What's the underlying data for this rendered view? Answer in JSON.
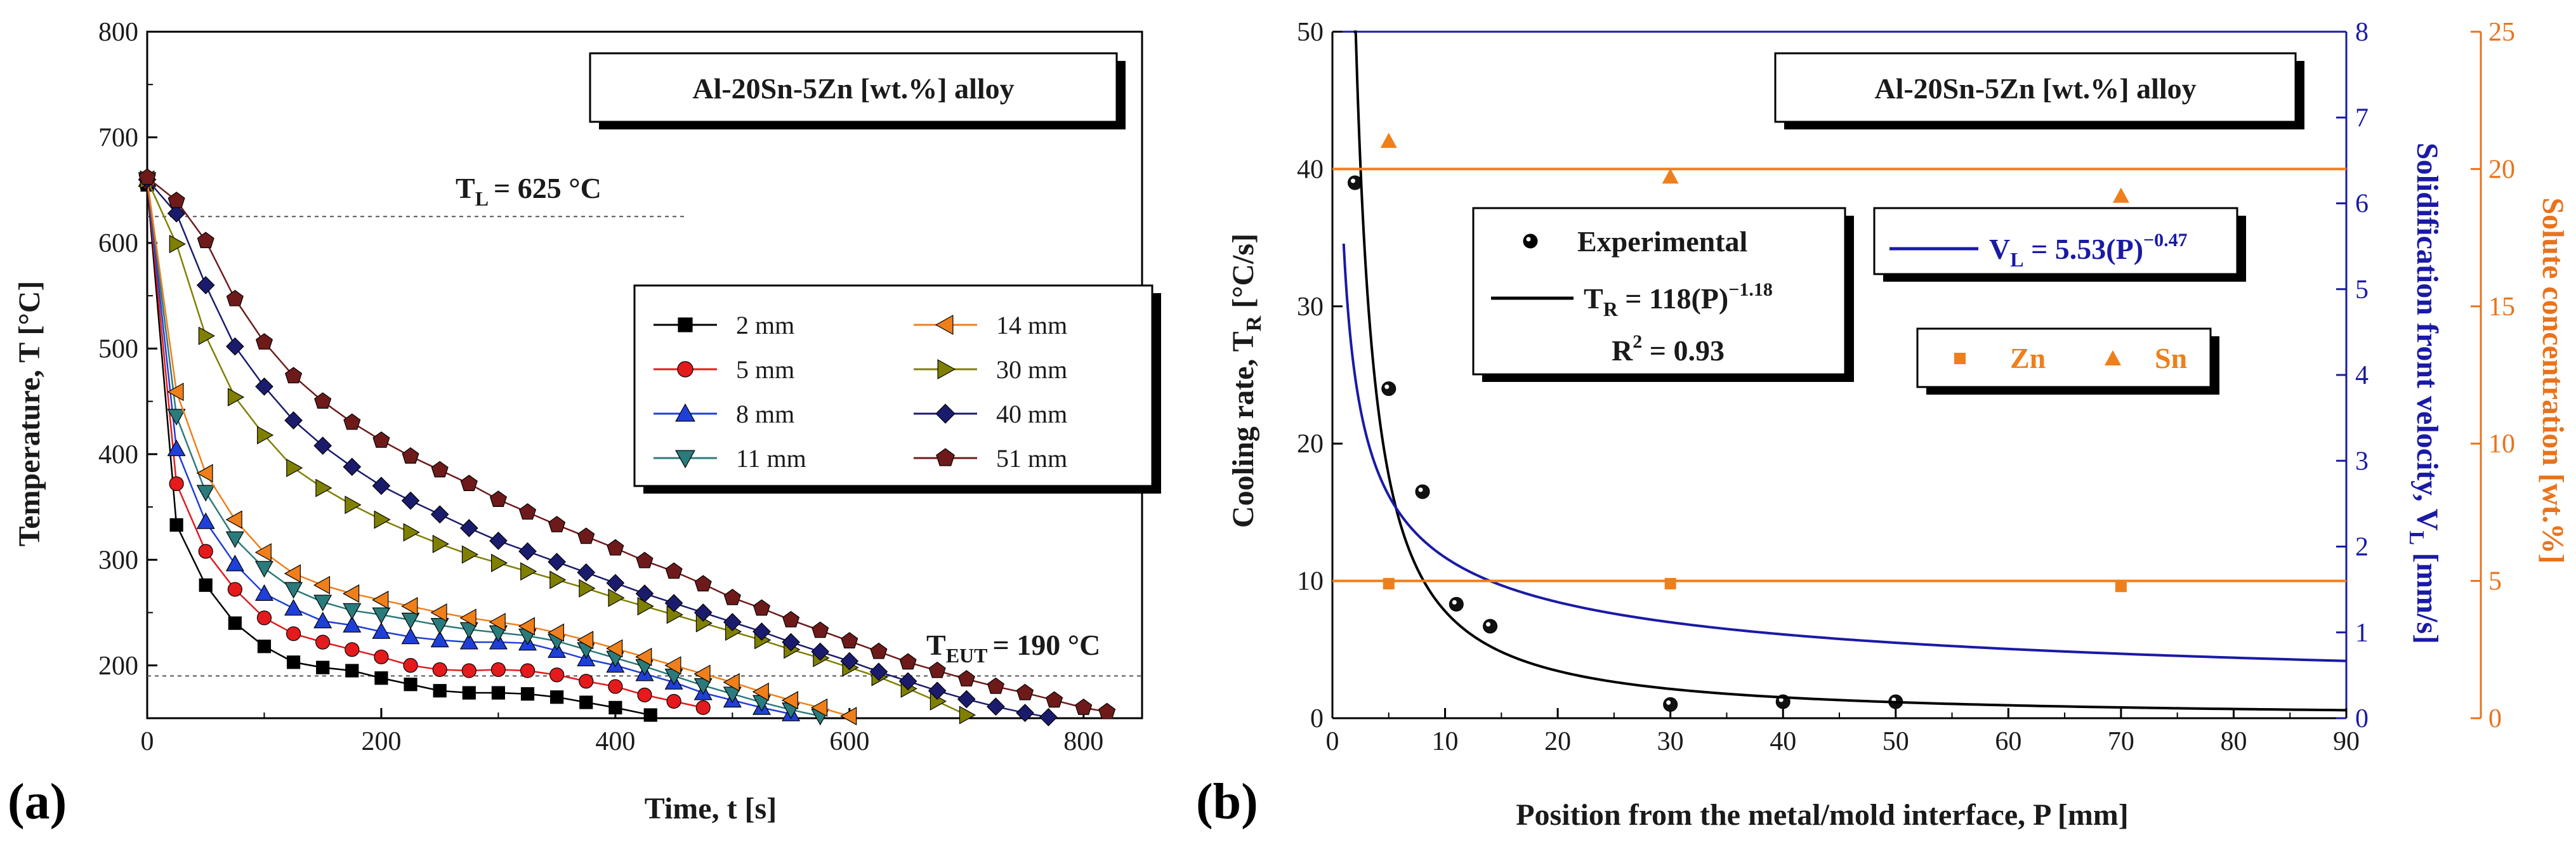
{
  "colors": {
    "black": "#000000",
    "red": "#e41a1c",
    "blue": "#1f3fd9",
    "teal": "#2a7b7b",
    "orange": "#ef7f1a",
    "olive": "#808000",
    "navy": "#1b1b6e",
    "maroon": "#6e1a1a",
    "vel_axis": "#1a1aa6",
    "conc_axis": "#e8731c"
  },
  "chart_data": [
    {
      "type": "line",
      "panel_label": "(a)",
      "title": "Al-20Sn-5Zn [wt.%] alloy",
      "xlabel": "Time, t [s]",
      "ylabel": "Temperature, T [°C]",
      "xlim": [
        0,
        850
      ],
      "ylim": [
        150,
        800
      ],
      "xticks": [
        0,
        200,
        400,
        600,
        800
      ],
      "yticks": [
        200,
        300,
        400,
        500,
        600,
        700,
        800
      ],
      "grid": false,
      "reference_lines": [
        {
          "axis": "y",
          "value": 625,
          "label_main": "T",
          "label_sub": "L",
          "label_rest": "= 625 °C"
        },
        {
          "axis": "y",
          "value": 190,
          "label_main": "T",
          "label_sub": "EUT",
          "label_rest": "= 190 °C"
        }
      ],
      "legend_position": "center-right",
      "series": [
        {
          "name": "2 mm",
          "marker": "square",
          "color": "black",
          "x": [
            0,
            25,
            50,
            75,
            100,
            125,
            150,
            175,
            200,
            225,
            250,
            275,
            300,
            325,
            350,
            375,
            400,
            430
          ],
          "y": [
            655,
            333,
            276,
            240,
            218,
            203,
            198,
            195,
            188,
            182,
            176,
            174,
            174,
            173,
            170,
            165,
            160,
            153
          ]
        },
        {
          "name": "5 mm",
          "marker": "circle",
          "color": "red",
          "x": [
            0,
            25,
            50,
            75,
            100,
            125,
            150,
            175,
            200,
            225,
            250,
            275,
            300,
            325,
            350,
            375,
            400,
            425,
            450,
            475
          ],
          "y": [
            658,
            372,
            308,
            272,
            245,
            230,
            222,
            215,
            208,
            200,
            196,
            195,
            196,
            195,
            191,
            185,
            180,
            172,
            166,
            160
          ]
        },
        {
          "name": "8 mm",
          "marker": "triangle-up",
          "color": "blue",
          "x": [
            0,
            25,
            50,
            75,
            100,
            125,
            150,
            175,
            200,
            225,
            250,
            275,
            300,
            325,
            350,
            375,
            400,
            425,
            450,
            475,
            500,
            525,
            550
          ],
          "y": [
            660,
            405,
            336,
            296,
            268,
            254,
            242,
            238,
            232,
            227,
            224,
            222,
            222,
            221,
            214,
            206,
            200,
            192,
            184,
            174,
            167,
            160,
            154
          ]
        },
        {
          "name": "11 mm",
          "marker": "triangle-down",
          "color": "teal",
          "x": [
            0,
            25,
            50,
            75,
            100,
            125,
            150,
            175,
            200,
            225,
            250,
            275,
            300,
            325,
            350,
            375,
            400,
            425,
            450,
            475,
            500,
            525,
            550,
            575
          ],
          "y": [
            660,
            436,
            364,
            320,
            292,
            272,
            260,
            252,
            248,
            243,
            238,
            234,
            231,
            228,
            223,
            215,
            207,
            199,
            190,
            181,
            173,
            165,
            158,
            152
          ]
        },
        {
          "name": "14 mm",
          "marker": "triangle-left",
          "color": "orange",
          "x": [
            0,
            25,
            50,
            75,
            100,
            125,
            150,
            175,
            200,
            225,
            250,
            275,
            300,
            325,
            350,
            375,
            400,
            425,
            450,
            475,
            500,
            525,
            550,
            575,
            600
          ],
          "y": [
            660,
            459,
            382,
            338,
            307,
            287,
            276,
            268,
            262,
            256,
            250,
            245,
            241,
            237,
            231,
            224,
            216,
            208,
            200,
            192,
            184,
            175,
            167,
            160,
            152
          ]
        },
        {
          "name": "30 mm",
          "marker": "triangle-right",
          "color": "olive",
          "x": [
            0,
            25,
            50,
            75,
            100,
            125,
            150,
            175,
            200,
            225,
            250,
            275,
            300,
            325,
            350,
            375,
            400,
            425,
            450,
            475,
            500,
            525,
            550,
            575,
            600,
            625,
            650,
            675,
            700
          ],
          "y": [
            660,
            599,
            512,
            454,
            418,
            387,
            368,
            352,
            338,
            326,
            315,
            305,
            297,
            289,
            281,
            273,
            264,
            256,
            248,
            240,
            232,
            224,
            215,
            207,
            198,
            189,
            178,
            166,
            153
          ]
        },
        {
          "name": "40 mm",
          "marker": "diamond",
          "color": "navy",
          "x": [
            0,
            25,
            50,
            75,
            100,
            125,
            150,
            175,
            200,
            225,
            250,
            275,
            300,
            325,
            350,
            375,
            400,
            425,
            450,
            475,
            500,
            525,
            550,
            575,
            600,
            625,
            650,
            675,
            700,
            725,
            750,
            770
          ],
          "y": [
            660,
            628,
            560,
            502,
            464,
            432,
            408,
            388,
            370,
            356,
            343,
            330,
            318,
            308,
            298,
            288,
            278,
            268,
            259,
            250,
            241,
            232,
            222,
            213,
            204,
            194,
            185,
            176,
            168,
            161,
            155,
            151
          ]
        },
        {
          "name": "51 mm",
          "marker": "pentagon",
          "color": "maroon",
          "x": [
            0,
            25,
            50,
            75,
            100,
            125,
            150,
            175,
            200,
            225,
            250,
            275,
            300,
            325,
            350,
            375,
            400,
            425,
            450,
            475,
            500,
            525,
            550,
            575,
            600,
            625,
            650,
            675,
            700,
            725,
            750,
            775,
            800,
            820
          ],
          "y": [
            662,
            640,
            602,
            547,
            506,
            474,
            450,
            430,
            413,
            398,
            385,
            372,
            357,
            345,
            333,
            322,
            311,
            299,
            289,
            277,
            264,
            254,
            243,
            233,
            223,
            213,
            203,
            195,
            187,
            180,
            174,
            167,
            160,
            156
          ]
        }
      ]
    },
    {
      "type": "scatter",
      "panel_label": "(b)",
      "title": "Al-20Sn-5Zn [wt.%] alloy",
      "xlabel": "Position from the metal/mold interface, P [mm]",
      "xlim": [
        0,
        90
      ],
      "xticks": [
        0,
        10,
        20,
        30,
        40,
        50,
        60,
        70,
        80,
        90
      ],
      "y_axes": [
        {
          "side": "left",
          "label_main": "Cooling rate, T",
          "label_sub": "R",
          "label_rest": " [°C/s]",
          "range": [
            0,
            50
          ],
          "ticks": [
            0,
            10,
            20,
            30,
            40,
            50
          ],
          "color": "black"
        },
        {
          "side": "right",
          "label_main": "Solidification front velocity, V",
          "label_sub": "L",
          "label_rest": " [mm/s]",
          "range": [
            0,
            8
          ],
          "ticks": [
            0,
            1,
            2,
            3,
            4,
            5,
            6,
            7,
            8
          ],
          "color": "vel_axis"
        },
        {
          "side": "right-outer",
          "label": "Solute concentration [wt.%]",
          "range": [
            0,
            25
          ],
          "ticks": [
            0,
            5,
            10,
            15,
            20,
            25
          ],
          "color": "conc_axis"
        }
      ],
      "grid": false,
      "series": [
        {
          "name": "Experimental",
          "marker": "circle",
          "axis": "left",
          "color": "black",
          "x": [
            2,
            5,
            8,
            11,
            14,
            30,
            40,
            50
          ],
          "y": [
            39,
            24,
            16.5,
            8.3,
            6.7,
            1.0,
            1.2,
            1.2
          ]
        },
        {
          "name": "T_R fit",
          "type": "line",
          "axis": "left",
          "color": "black",
          "formula": {
            "a": 118,
            "b": -1.18
          },
          "x_start": 1.9,
          "x_end": 90
        },
        {
          "name": "V_L fit",
          "type": "line",
          "axis": "right",
          "color": "vel_axis",
          "formula": {
            "a": 5.53,
            "b": -0.47
          },
          "x_start": 1.0,
          "x_end": 90
        },
        {
          "name": "Zn",
          "marker": "square",
          "axis": "right-outer",
          "color": "orange",
          "x": [
            5,
            30,
            70
          ],
          "y": [
            4.9,
            4.9,
            4.8
          ],
          "mean_line": 5.0
        },
        {
          "name": "Sn",
          "marker": "triangle-up",
          "axis": "right-outer",
          "color": "orange",
          "x": [
            5,
            30,
            70
          ],
          "y": [
            21.0,
            19.7,
            19.0
          ],
          "mean_line": 20.0
        }
      ],
      "annotations": {
        "experimental_label": "Experimental",
        "fit_tr_main": "T",
        "fit_tr_sub": "R",
        "fit_tr_rest": " = 118(P)",
        "fit_tr_exp": "−1.18",
        "r2_main": "R",
        "r2_sup": "2",
        "r2_rest": " = 0.93",
        "fit_vl_main": "V",
        "fit_vl_sub": "L",
        "fit_vl_rest": " = 5.53(P)",
        "fit_vl_exp": "−0.47",
        "zn_label": "Zn",
        "sn_label": "Sn"
      }
    }
  ]
}
